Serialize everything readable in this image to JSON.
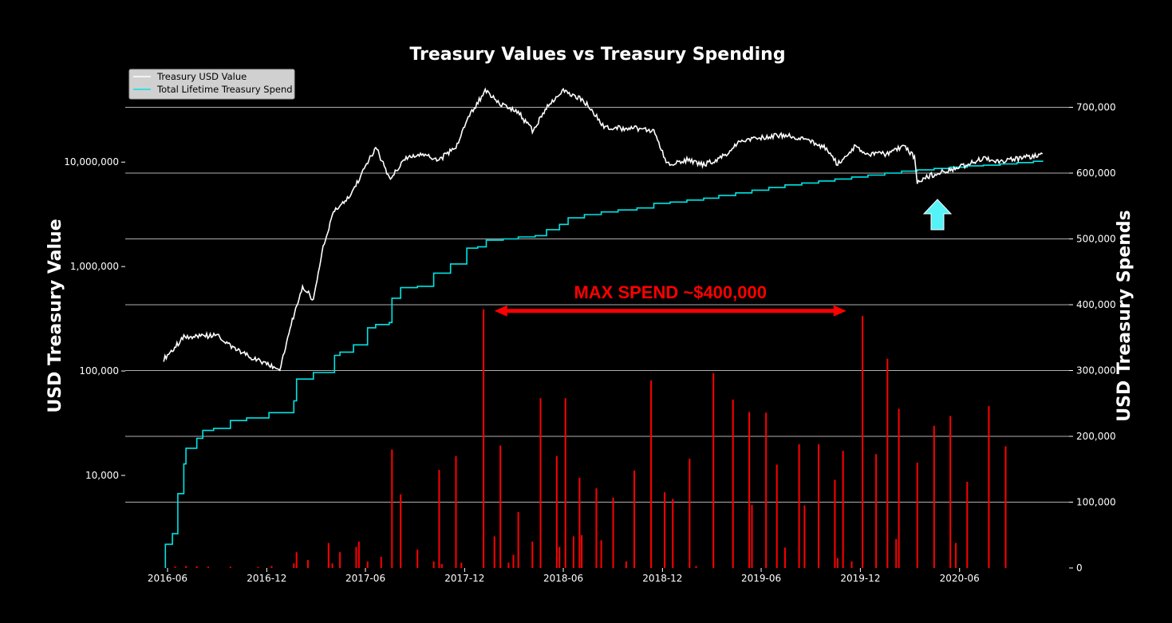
{
  "chart_data": {
    "type": "line",
    "title": "Treasury Values vs Treasury Spending",
    "ylabel_left": "USD Treasury Value",
    "ylabel_right": "USD Treasury Spends",
    "yscale_left": "log",
    "ylim_left": [
      1300,
      80000000
    ],
    "ylim_right": [
      0,
      760000
    ],
    "xlim": [
      "2016-03-15",
      "2020-12-20"
    ],
    "x_ticks": [
      "2016-06",
      "2016-12",
      "2017-06",
      "2017-12",
      "2018-06",
      "2018-12",
      "2019-06",
      "2019-12",
      "2020-06"
    ],
    "left_ticks": [
      {
        "value": 10000,
        "label": "10,000"
      },
      {
        "value": 100000,
        "label": "100,000"
      },
      {
        "value": 1000000,
        "label": "1,000,000"
      },
      {
        "value": 10000000,
        "label": "10,000,000"
      }
    ],
    "right_ticks": [
      {
        "value": 0,
        "label": "0"
      },
      {
        "value": 100000,
        "label": "100,000"
      },
      {
        "value": 200000,
        "label": "200,000"
      },
      {
        "value": 300000,
        "label": "300,000"
      },
      {
        "value": 400000,
        "label": "400,000"
      },
      {
        "value": 500000,
        "label": "500,000"
      },
      {
        "value": 600000,
        "label": "600,000"
      },
      {
        "value": 700000,
        "label": "700,000"
      }
    ],
    "grid": "right-axis horizontal",
    "legend_position": "top-left",
    "colors": {
      "treasury_value": "#ffffff",
      "lifetime_spend": "#00e5e5",
      "spend_bars": "#ff0000",
      "annotation": "#ff0000",
      "arrow_up": "#55f2f7",
      "grid": "#b0b0b0",
      "background": "#000000"
    },
    "series": [
      {
        "name": "Treasury USD Value",
        "axis": "left",
        "values": [
          [
            "2016-05-25",
            130000
          ],
          [
            "2016-06-10",
            160000
          ],
          [
            "2016-07-01",
            210000
          ],
          [
            "2016-08-01",
            215000
          ],
          [
            "2016-09-01",
            220000
          ],
          [
            "2016-10-01",
            165000
          ],
          [
            "2016-11-01",
            135000
          ],
          [
            "2016-12-01",
            115000
          ],
          [
            "2016-12-25",
            105000
          ],
          [
            "2017-01-15",
            280000
          ],
          [
            "2017-02-05",
            650000
          ],
          [
            "2017-02-25",
            480000
          ],
          [
            "2017-03-15",
            1500000
          ],
          [
            "2017-04-05",
            3500000
          ],
          [
            "2017-05-01",
            4500000
          ],
          [
            "2017-06-01",
            9000000
          ],
          [
            "2017-06-20",
            14000000
          ],
          [
            "2017-07-15",
            7000000
          ],
          [
            "2017-08-15",
            11000000
          ],
          [
            "2017-09-15",
            12000000
          ],
          [
            "2017-10-15",
            10500000
          ],
          [
            "2017-11-15",
            14000000
          ],
          [
            "2017-12-10",
            28000000
          ],
          [
            "2018-01-08",
            48000000
          ],
          [
            "2018-02-05",
            36000000
          ],
          [
            "2018-03-10",
            30000000
          ],
          [
            "2018-04-05",
            20000000
          ],
          [
            "2018-05-05",
            35000000
          ],
          [
            "2018-06-01",
            50000000
          ],
          [
            "2018-07-10",
            38000000
          ],
          [
            "2018-08-15",
            22000000
          ],
          [
            "2018-09-15",
            21000000
          ],
          [
            "2018-10-15",
            21000000
          ],
          [
            "2018-11-15",
            20000000
          ],
          [
            "2018-12-10",
            9500000
          ],
          [
            "2019-01-15",
            10500000
          ],
          [
            "2019-02-15",
            9500000
          ],
          [
            "2019-03-20",
            11000000
          ],
          [
            "2019-04-20",
            15500000
          ],
          [
            "2019-05-25",
            17000000
          ],
          [
            "2019-06-25",
            18000000
          ],
          [
            "2019-07-25",
            18000000
          ],
          [
            "2019-08-25",
            16000000
          ],
          [
            "2019-09-25",
            14000000
          ],
          [
            "2019-10-20",
            9500000
          ],
          [
            "2019-11-20",
            14000000
          ],
          [
            "2019-12-20",
            12000000
          ],
          [
            "2020-01-20",
            12000000
          ],
          [
            "2020-02-20",
            14500000
          ],
          [
            "2020-03-10",
            11000000
          ],
          [
            "2020-03-15",
            6500000
          ],
          [
            "2020-04-10",
            7500000
          ],
          [
            "2020-05-15",
            8500000
          ],
          [
            "2020-06-15",
            9500000
          ],
          [
            "2020-07-15",
            11000000
          ],
          [
            "2020-08-15",
            10000000
          ],
          [
            "2020-09-15",
            10800000
          ],
          [
            "2020-10-25",
            11500000
          ],
          [
            "2020-11-01",
            12000000
          ]
        ]
      },
      {
        "name": "Total Lifetime Treasury Spend",
        "axis": "right",
        "values": [
          [
            "2016-05-28",
            0
          ],
          [
            "2016-05-28",
            36000
          ],
          [
            "2016-06-10",
            52000
          ],
          [
            "2016-06-20",
            113000
          ],
          [
            "2016-07-01",
            158000
          ],
          [
            "2016-07-05",
            182000
          ],
          [
            "2016-07-25",
            197000
          ],
          [
            "2016-08-05",
            209000
          ],
          [
            "2016-08-25",
            212000
          ],
          [
            "2016-09-25",
            224000
          ],
          [
            "2016-10-25",
            228000
          ],
          [
            "2016-12-05",
            236000
          ],
          [
            "2017-01-20",
            254000
          ],
          [
            "2017-01-25",
            287000
          ],
          [
            "2017-02-25",
            297000
          ],
          [
            "2017-04-05",
            323000
          ],
          [
            "2017-04-15",
            328000
          ],
          [
            "2017-05-10",
            339000
          ],
          [
            "2017-06-05",
            365000
          ],
          [
            "2017-06-20",
            370000
          ],
          [
            "2017-07-15",
            373000
          ],
          [
            "2017-07-20",
            410000
          ],
          [
            "2017-08-05",
            426000
          ],
          [
            "2017-09-05",
            428000
          ],
          [
            "2017-10-05",
            448000
          ],
          [
            "2017-11-05",
            462000
          ],
          [
            "2017-12-05",
            486000
          ],
          [
            "2017-12-25",
            488000
          ],
          [
            "2018-01-10",
            498000
          ],
          [
            "2018-02-10",
            500000
          ],
          [
            "2018-03-10",
            503000
          ],
          [
            "2018-04-10",
            505000
          ],
          [
            "2018-05-01",
            514000
          ],
          [
            "2018-05-25",
            522000
          ],
          [
            "2018-06-10",
            532000
          ],
          [
            "2018-07-10",
            537000
          ],
          [
            "2018-08-10",
            541000
          ],
          [
            "2018-09-10",
            544000
          ],
          [
            "2018-10-15",
            547000
          ],
          [
            "2018-11-15",
            554000
          ],
          [
            "2018-12-15",
            556000
          ],
          [
            "2019-01-15",
            559000
          ],
          [
            "2019-02-15",
            562000
          ],
          [
            "2019-03-15",
            566000
          ],
          [
            "2019-04-15",
            570000
          ],
          [
            "2019-05-15",
            574000
          ],
          [
            "2019-06-15",
            578000
          ],
          [
            "2019-07-15",
            582000
          ],
          [
            "2019-08-15",
            585000
          ],
          [
            "2019-09-15",
            588000
          ],
          [
            "2019-10-15",
            591000
          ],
          [
            "2019-11-15",
            594000
          ],
          [
            "2019-12-15",
            597000
          ],
          [
            "2020-01-15",
            600000
          ],
          [
            "2020-02-15",
            603000
          ],
          [
            "2020-03-15",
            605000
          ],
          [
            "2020-04-15",
            607000
          ],
          [
            "2020-05-15",
            609000
          ],
          [
            "2020-06-15",
            611000
          ],
          [
            "2020-07-15",
            612000
          ],
          [
            "2020-08-15",
            614000
          ],
          [
            "2020-09-15",
            616000
          ],
          [
            "2020-10-15",
            618000
          ],
          [
            "2020-11-01",
            619000
          ]
        ]
      },
      {
        "name": "Treasury Spends",
        "axis": "right",
        "type": "bar",
        "values": [
          [
            "2016-06-15",
            2000
          ],
          [
            "2016-07-05",
            3000
          ],
          [
            "2016-07-25",
            2500
          ],
          [
            "2016-08-15",
            2000
          ],
          [
            "2016-09-25",
            2000
          ],
          [
            "2016-11-15",
            1500
          ],
          [
            "2016-12-10",
            3000
          ],
          [
            "2017-01-20",
            7000
          ],
          [
            "2017-01-25",
            24000
          ],
          [
            "2017-02-15",
            12000
          ],
          [
            "2017-03-25",
            38000
          ],
          [
            "2017-04-01",
            7000
          ],
          [
            "2017-04-15",
            24000
          ],
          [
            "2017-05-15",
            32000
          ],
          [
            "2017-05-20",
            40000
          ],
          [
            "2017-06-05",
            10000
          ],
          [
            "2017-06-30",
            17000
          ],
          [
            "2017-07-20",
            180000
          ],
          [
            "2017-08-05",
            112000
          ],
          [
            "2017-09-05",
            28000
          ],
          [
            "2017-10-05",
            10000
          ],
          [
            "2017-10-15",
            149000
          ],
          [
            "2017-10-20",
            6000
          ],
          [
            "2017-11-15",
            170000
          ],
          [
            "2017-11-25",
            8000
          ],
          [
            "2018-01-05",
            393000
          ],
          [
            "2018-01-25",
            48000
          ],
          [
            "2018-02-05",
            186000
          ],
          [
            "2018-02-20",
            8000
          ],
          [
            "2018-03-01",
            20000
          ],
          [
            "2018-03-10",
            85000
          ],
          [
            "2018-04-05",
            40000
          ],
          [
            "2018-04-20",
            258000
          ],
          [
            "2018-05-20",
            170000
          ],
          [
            "2018-05-25",
            32000
          ],
          [
            "2018-06-05",
            258000
          ],
          [
            "2018-06-20",
            48000
          ],
          [
            "2018-07-01",
            137000
          ],
          [
            "2018-07-05",
            50000
          ],
          [
            "2018-08-01",
            121000
          ],
          [
            "2018-08-10",
            42000
          ],
          [
            "2018-09-01",
            107000
          ],
          [
            "2018-09-25",
            10000
          ],
          [
            "2018-10-10",
            148000
          ],
          [
            "2018-11-10",
            285000
          ],
          [
            "2018-12-05",
            115000
          ],
          [
            "2018-12-20",
            105000
          ],
          [
            "2019-01-20",
            166000
          ],
          [
            "2019-02-01",
            3000
          ],
          [
            "2019-03-05",
            296000
          ],
          [
            "2019-04-10",
            256000
          ],
          [
            "2019-05-10",
            237000
          ],
          [
            "2019-05-15",
            96000
          ],
          [
            "2019-06-10",
            236000
          ],
          [
            "2019-06-30",
            157000
          ],
          [
            "2019-07-15",
            31000
          ],
          [
            "2019-08-10",
            188000
          ],
          [
            "2019-08-20",
            95000
          ],
          [
            "2019-09-15",
            188000
          ],
          [
            "2019-10-15",
            134000
          ],
          [
            "2019-10-20",
            15000
          ],
          [
            "2019-10-30",
            178000
          ],
          [
            "2019-11-15",
            10000
          ],
          [
            "2019-12-05",
            383000
          ],
          [
            "2019-12-30",
            173000
          ],
          [
            "2020-01-20",
            318000
          ],
          [
            "2020-02-05",
            44000
          ],
          [
            "2020-02-10",
            242000
          ],
          [
            "2020-03-15",
            160000
          ],
          [
            "2020-04-15",
            216000
          ],
          [
            "2020-05-15",
            231000
          ],
          [
            "2020-05-25",
            38000
          ],
          [
            "2020-06-15",
            131000
          ],
          [
            "2020-07-25",
            246000
          ],
          [
            "2020-08-25",
            185000
          ]
        ]
      }
    ],
    "annotations": [
      {
        "text": "MAX SPEND ~$400,000",
        "from": "2018-01-25",
        "to": "2019-11-05",
        "y": 393000
      }
    ]
  }
}
